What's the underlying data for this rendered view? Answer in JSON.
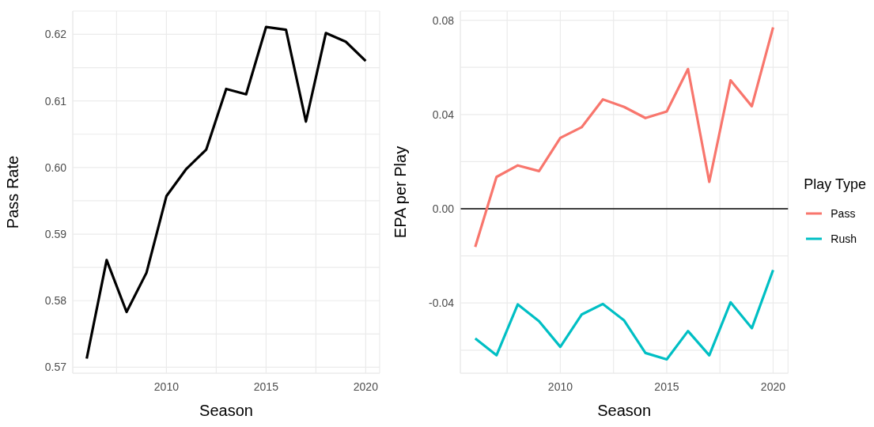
{
  "chart_data": [
    {
      "type": "line",
      "xlabel": "Season",
      "ylabel": "Pass Rate",
      "x": [
        2006,
        2007,
        2008,
        2009,
        2010,
        2011,
        2012,
        2013,
        2014,
        2015,
        2016,
        2017,
        2018,
        2019,
        2020
      ],
      "series": [
        {
          "color": "#000000",
          "values": [
            0.5713,
            0.5861,
            0.5783,
            0.5842,
            0.5957,
            0.5998,
            0.6027,
            0.6118,
            0.611,
            0.6211,
            0.6207,
            0.6069,
            0.6202,
            0.6189,
            0.616
          ]
        }
      ],
      "xlim": [
        2005.3,
        2020.7
      ],
      "xticks": [
        {
          "value": 2007.5,
          "label": null
        },
        2010,
        {
          "value": 2012.5,
          "label": null
        },
        2015,
        {
          "value": 2017.5,
          "label": null
        },
        2020
      ],
      "ylim": [
        0.5691,
        0.6235
      ],
      "yticks": [
        0.57,
        {
          "value": 0.575,
          "label": null
        },
        0.58,
        {
          "value": 0.585,
          "label": null
        },
        0.59,
        {
          "value": 0.595,
          "label": null
        },
        {
          "value": 0.6,
          "label": "0.60"
        },
        {
          "value": 0.605,
          "label": null
        },
        0.61,
        {
          "value": 0.615,
          "label": null
        },
        0.62
      ],
      "grid": true,
      "legend": false
    },
    {
      "type": "line",
      "xlabel": "Season",
      "ylabel": "EPA per Play",
      "legend_title": "Play Type",
      "x": [
        2006,
        2007,
        2008,
        2009,
        2010,
        2011,
        2012,
        2013,
        2014,
        2015,
        2016,
        2017,
        2018,
        2019,
        2020
      ],
      "series": [
        {
          "name": "Pass",
          "color": "#f8766d",
          "values": [
            -0.0162,
            0.0135,
            0.0184,
            0.016,
            0.0301,
            0.0346,
            0.0464,
            0.0432,
            0.0385,
            0.0413,
            0.0593,
            0.0114,
            0.0545,
            0.0435,
            0.077
          ]
        },
        {
          "name": "Rush",
          "color": "#00bfc4",
          "values": [
            -0.055,
            -0.0622,
            -0.0406,
            -0.0477,
            -0.0586,
            -0.0449,
            -0.0404,
            -0.0474,
            -0.0612,
            -0.0639,
            -0.0519,
            -0.0622,
            -0.0397,
            -0.0507,
            -0.026
          ]
        }
      ],
      "xlim": [
        2005.3,
        2020.7
      ],
      "xticks": [
        {
          "value": 2007.5,
          "label": null
        },
        2010,
        {
          "value": 2012.5,
          "label": null
        },
        2015,
        {
          "value": 2017.5,
          "label": null
        },
        2020
      ],
      "ylim": [
        -0.0698,
        0.0839
      ],
      "yticks": [
        {
          "value": -0.06,
          "label": null
        },
        {
          "value": -0.04,
          "label": "-0.04"
        },
        {
          "value": -0.02,
          "label": null
        },
        {
          "value": 0,
          "label": "0.00"
        },
        {
          "value": 0.02,
          "label": null
        },
        {
          "value": 0.04,
          "label": "0.04"
        },
        {
          "value": 0.06,
          "label": null
        },
        {
          "value": 0.08,
          "label": "0.08"
        }
      ],
      "ref_lines": [
        {
          "axis": "y",
          "value": 0,
          "color": "#000000"
        }
      ],
      "grid": true,
      "legend": "right"
    }
  ]
}
